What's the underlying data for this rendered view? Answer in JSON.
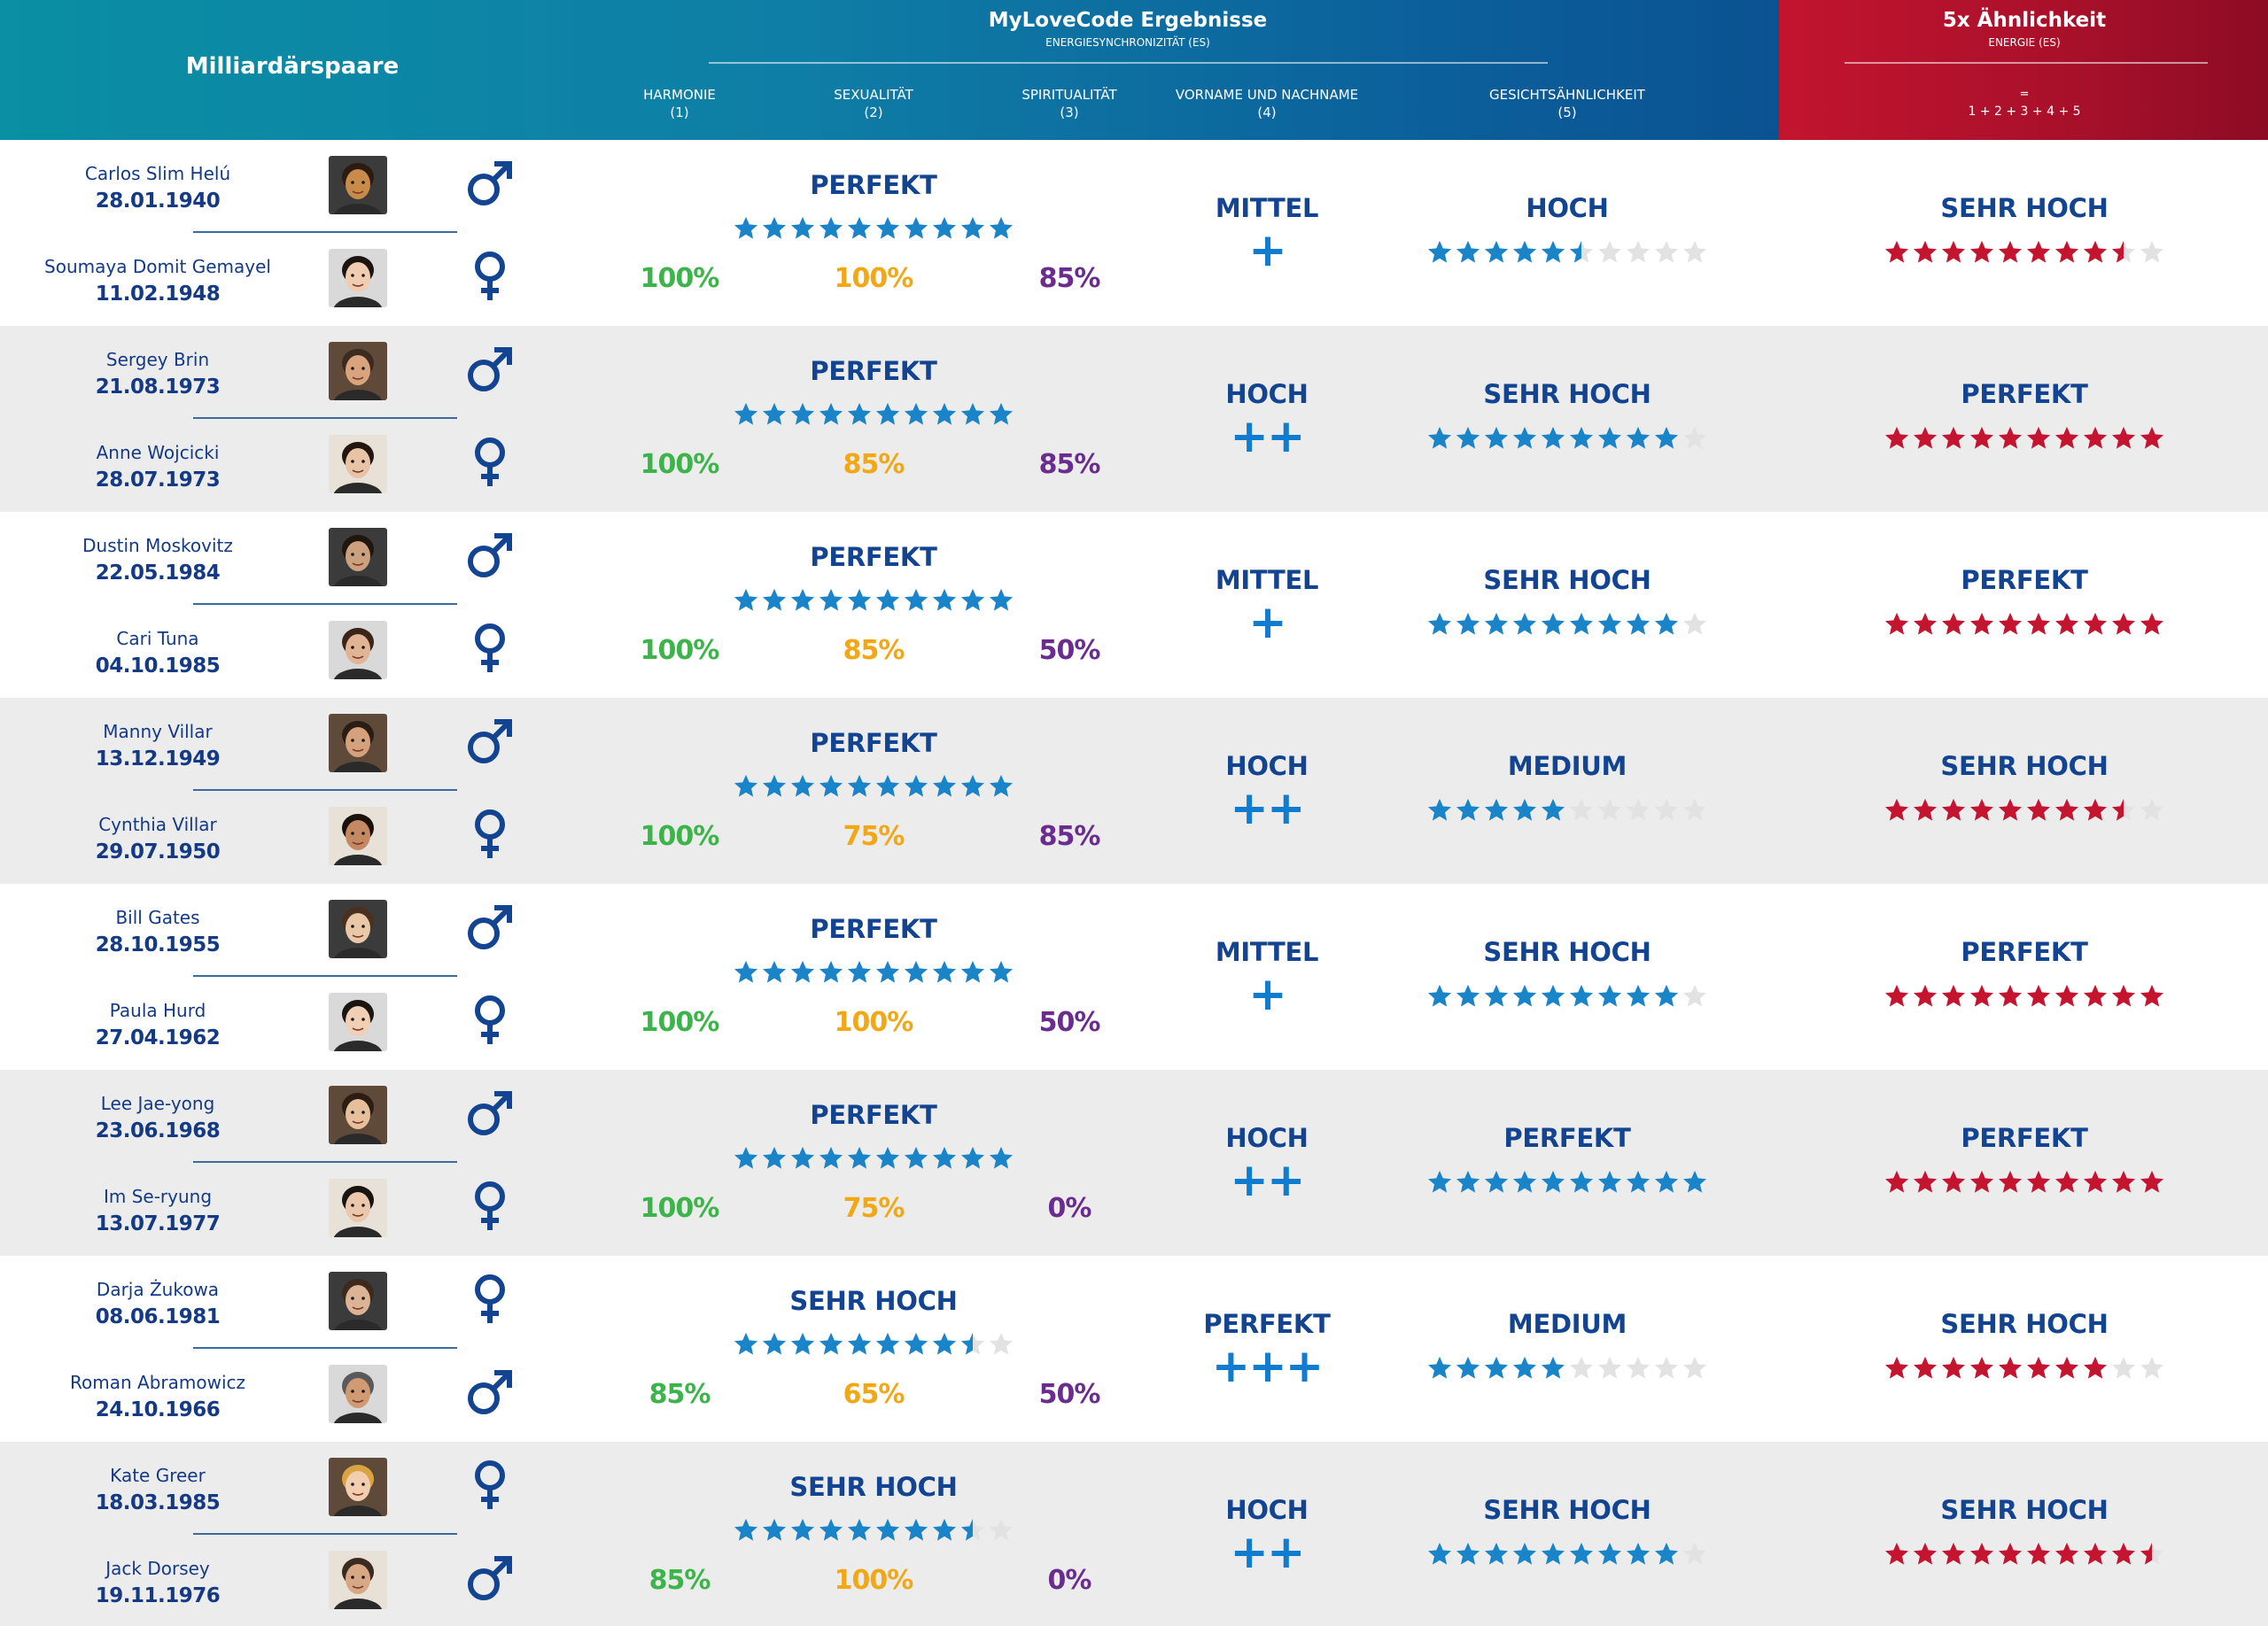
{
  "header": {
    "left_title": "Milliardärspaare",
    "center_title": "MyLoveCode Ergebnisse",
    "center_subtitle": "ENERGIESYNCHRONIZITÄT (ES)",
    "columns": [
      {
        "label": "HARMONIE",
        "num": "(1)"
      },
      {
        "label": "SEXUALITÄT",
        "num": "(2)"
      },
      {
        "label": "SPIRITUALITÄT",
        "num": "(3)"
      },
      {
        "label": "VORNAME UND NACHNAME",
        "num": "(4)"
      },
      {
        "label": "GESICHTSÄHNLICHKEIT",
        "num": "(5)"
      }
    ],
    "right_title": "5x Ähnlichkeit",
    "right_subtitle": "ENERGIE (ES)",
    "right_eq": "=",
    "right_formula": "1 + 2 + 3 + 4 + 5"
  },
  "colors": {
    "header_teal": "#0a8fa4",
    "header_blue": "#0a3f83",
    "header_red": "#c3142f",
    "name_blue": "#143a86",
    "label_blue": "#134491",
    "star_blue": "#1a84c9",
    "star_red": "#c4142f",
    "star_gray": "#e2e2e2",
    "harmony_green": "#3cb44a",
    "sexuality_orange": "#f2a714",
    "spirituality_purple": "#6a2d8f",
    "row_alt_bg": "#ececec"
  },
  "pairs": [
    {
      "p1": {
        "name": "Carlos Slim Helú",
        "date": "28.01.1940",
        "gender": "male",
        "gender_icon": "male-symbol-icon"
      },
      "p2": {
        "name": "Soumaya Domit Gemayel",
        "date": "11.02.1948",
        "gender": "female",
        "gender_icon": "female-symbol-icon"
      },
      "es_label": "PERFEKT",
      "es_stars": 10,
      "harmony": "100%",
      "sexuality": "100%",
      "spirituality": "85%",
      "name_label": "MITTEL",
      "name_plus": "+",
      "face_label": "HOCH",
      "face_stars": 5.5,
      "total_label": "SEHR HOCH",
      "total_stars": 8.5
    },
    {
      "p1": {
        "name": "Sergey Brin",
        "date": "21.08.1973",
        "gender": "male",
        "gender_icon": "male-symbol-icon"
      },
      "p2": {
        "name": "Anne Wojcicki",
        "date": "28.07.1973",
        "gender": "female",
        "gender_icon": "female-symbol-icon"
      },
      "es_label": "PERFEKT",
      "es_stars": 10,
      "harmony": "100%",
      "sexuality": "85%",
      "spirituality": "85%",
      "name_label": "HOCH",
      "name_plus": "++",
      "face_label": "SEHR HOCH",
      "face_stars": 9,
      "total_label": "PERFEKT",
      "total_stars": 10
    },
    {
      "p1": {
        "name": "Dustin Moskovitz",
        "date": "22.05.1984",
        "gender": "male",
        "gender_icon": "male-symbol-icon"
      },
      "p2": {
        "name": "Cari Tuna",
        "date": "04.10.1985",
        "gender": "female",
        "gender_icon": "female-symbol-icon"
      },
      "es_label": "PERFEKT",
      "es_stars": 10,
      "harmony": "100%",
      "sexuality": "85%",
      "spirituality": "50%",
      "name_label": "MITTEL",
      "name_plus": "+",
      "face_label": "SEHR HOCH",
      "face_stars": 9,
      "total_label": "PERFEKT",
      "total_stars": 10
    },
    {
      "p1": {
        "name": "Manny Villar",
        "date": "13.12.1949",
        "gender": "male",
        "gender_icon": "male-symbol-icon"
      },
      "p2": {
        "name": "Cynthia Villar",
        "date": "29.07.1950",
        "gender": "female",
        "gender_icon": "female-symbol-icon"
      },
      "es_label": "PERFEKT",
      "es_stars": 10,
      "harmony": "100%",
      "sexuality": "75%",
      "spirituality": "85%",
      "name_label": "HOCH",
      "name_plus": "++",
      "face_label": "MEDIUM",
      "face_stars": 5,
      "total_label": "SEHR HOCH",
      "total_stars": 8.5
    },
    {
      "p1": {
        "name": "Bill Gates",
        "date": "28.10.1955",
        "gender": "male",
        "gender_icon": "male-symbol-icon"
      },
      "p2": {
        "name": "Paula Hurd",
        "date": "27.04.1962",
        "gender": "female",
        "gender_icon": "female-symbol-icon"
      },
      "es_label": "PERFEKT",
      "es_stars": 10,
      "harmony": "100%",
      "sexuality": "100%",
      "spirituality": "50%",
      "name_label": "MITTEL",
      "name_plus": "+",
      "face_label": "SEHR HOCH",
      "face_stars": 9,
      "total_label": "PERFEKT",
      "total_stars": 10
    },
    {
      "p1": {
        "name": "Lee Jae-yong",
        "date": "23.06.1968",
        "gender": "male",
        "gender_icon": "male-symbol-icon"
      },
      "p2": {
        "name": "Im Se-ryung",
        "date": "13.07.1977",
        "gender": "female",
        "gender_icon": "female-symbol-icon"
      },
      "es_label": "PERFEKT",
      "es_stars": 10,
      "harmony": "100%",
      "sexuality": "75%",
      "spirituality": "0%",
      "name_label": "HOCH",
      "name_plus": "++",
      "face_label": "PERFEKT",
      "face_stars": 10,
      "total_label": "PERFEKT",
      "total_stars": 10
    },
    {
      "p1": {
        "name": "Darja Żukowa",
        "date": "08.06.1981",
        "gender": "female",
        "gender_icon": "female-symbol-icon"
      },
      "p2": {
        "name": "Roman Abramowicz",
        "date": "24.10.1966",
        "gender": "male",
        "gender_icon": "male-symbol-icon"
      },
      "es_label": "SEHR HOCH",
      "es_stars": 8.5,
      "harmony": "85%",
      "sexuality": "65%",
      "spirituality": "50%",
      "name_label": "PERFEKT",
      "name_plus": "+++",
      "face_label": "MEDIUM",
      "face_stars": 5,
      "total_label": "SEHR HOCH",
      "total_stars": 8
    },
    {
      "p1": {
        "name": "Kate Greer",
        "date": "18.03.1985",
        "gender": "female",
        "gender_icon": "female-symbol-icon"
      },
      "p2": {
        "name": "Jack Dorsey",
        "date": "19.11.1976",
        "gender": "male",
        "gender_icon": "male-symbol-icon"
      },
      "es_label": "SEHR HOCH",
      "es_stars": 8.5,
      "harmony": "85%",
      "sexuality": "100%",
      "spirituality": "0%",
      "name_label": "HOCH",
      "name_plus": "++",
      "face_label": "SEHR HOCH",
      "face_stars": 9,
      "total_label": "SEHR HOCH",
      "total_stars": 9.5
    }
  ]
}
